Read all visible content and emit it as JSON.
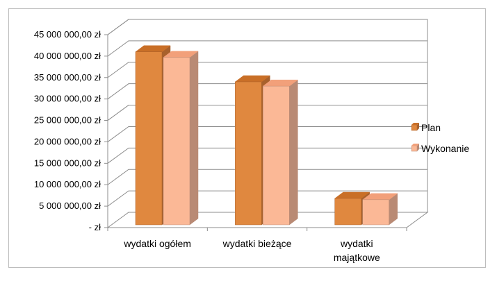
{
  "chart_data": {
    "type": "bar",
    "categories": [
      [
        "wydatki ogółem"
      ],
      [
        "wydatki bieżące"
      ],
      [
        "wydatki",
        "majątkowe"
      ]
    ],
    "series": [
      {
        "name": "Plan",
        "values": [
          41000000,
          34000000,
          6800000
        ]
      },
      {
        "name": "Wykonanie",
        "values": [
          39700000,
          33000000,
          6500000
        ]
      }
    ],
    "y_tick_labels": [
      "-  zł",
      "5 000 000,00 zł",
      "10 000 000,00 zł",
      "15 000 000,00 zł",
      "20 000 000,00 zł",
      "25 000 000,00 zł",
      "30 000 000,00 zł",
      "35 000 000,00 zł",
      "40 000 000,00 zł",
      "45 000 000,00 zł"
    ],
    "ylim": [
      0,
      45000000
    ],
    "grid": true,
    "legend_position": "right",
    "three_d": true,
    "colors": {
      "plan_front": "#e0883f",
      "plan_top": "#c96f27",
      "plan_side": "#a8612c",
      "wyk_front": "#fbb896",
      "wyk_top": "#f2a07a",
      "wyk_side": "#b98a74"
    }
  }
}
